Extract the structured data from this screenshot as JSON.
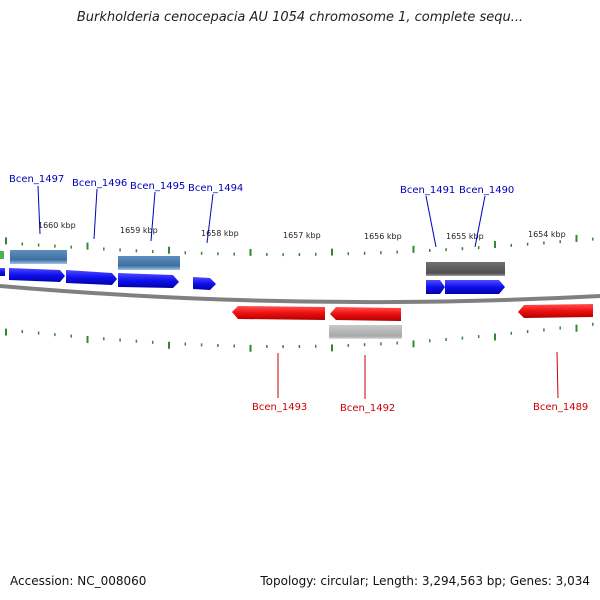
{
  "title": "Burkholderia cenocepacia AU 1054 chromosome 1, complete sequ...",
  "footer": {
    "accession": "Accession: NC_008060",
    "summary": "Topology: circular; Length: 3,294,563 bp; Genes: 3,034"
  },
  "colors": {
    "forward_gene": "#1a1aff",
    "reverse_gene": "#ff1a1a",
    "forward_label": "#0000bb",
    "reverse_label": "#cc0000",
    "tick": "#2e8b2e",
    "backbone": "#808080",
    "steelblue_feature": "#4682b4",
    "gray_dark_feature": "#606060",
    "gray_light_feature": "#b8b8b8"
  },
  "ruler": {
    "labels": [
      "1660 kbp",
      "1659 kbp",
      "1658 kbp",
      "1657 kbp",
      "1656 kbp",
      "1655 kbp",
      "1654 kbp"
    ]
  },
  "genes": {
    "forward": [
      "Bcen_1497",
      "Bcen_1496",
      "Bcen_1495",
      "Bcen_1494",
      "Bcen_1491",
      "Bcen_1490"
    ],
    "reverse": [
      "Bcen_1493",
      "Bcen_1492",
      "Bcen_1489"
    ]
  }
}
